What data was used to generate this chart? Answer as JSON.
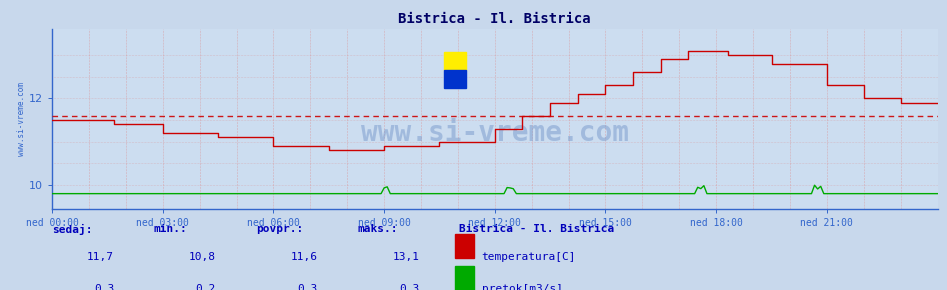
{
  "title": "Bistrica - Il. Bistrica",
  "bg_color": "#ccddf0",
  "fig_bg_color": "#c8d8ec",
  "x_labels": [
    "ned 00:00",
    "ned 03:00",
    "ned 06:00",
    "ned 09:00",
    "ned 12:00",
    "ned 15:00",
    "ned 18:00",
    "ned 21:00"
  ],
  "x_ticks_norm": [
    0.0,
    0.125,
    0.25,
    0.375,
    0.5,
    0.625,
    0.75,
    0.875
  ],
  "x_total": 288,
  "y_ticks": [
    10,
    12
  ],
  "ylim": [
    9.45,
    13.6
  ],
  "xlim": [
    0,
    288
  ],
  "grid_color": "#dd8888",
  "temp_color": "#cc0000",
  "flow_color": "#00aa00",
  "avg_value": 11.6,
  "axis_color": "#3366cc",
  "tick_color": "#3366cc",
  "title_color": "#000066",
  "watermark_text": "www.si-vreme.com",
  "watermark_color": "#7799cc",
  "watermark_alpha": 0.5,
  "ylabel_text": "www.si-vreme.com",
  "ylabel_color": "#3366cc",
  "footer_color": "#0000bb",
  "sedaj_label": "sedaj:",
  "min_label": "min.:",
  "povpr_label": "povpr.:",
  "maks_label": "maks.:",
  "station_label": "Bistrica - Il. Bistrica",
  "temp_label": "temperatura[C]",
  "flow_label": "pretok[m3/s]",
  "sedaj_temp": "11,7",
  "min_temp": "10,8",
  "povpr_temp": "11,6",
  "maks_temp": "13,1",
  "sedaj_flow": "0,3",
  "min_flow": "0,2",
  "povpr_flow": "0,3",
  "maks_flow": "0,3"
}
